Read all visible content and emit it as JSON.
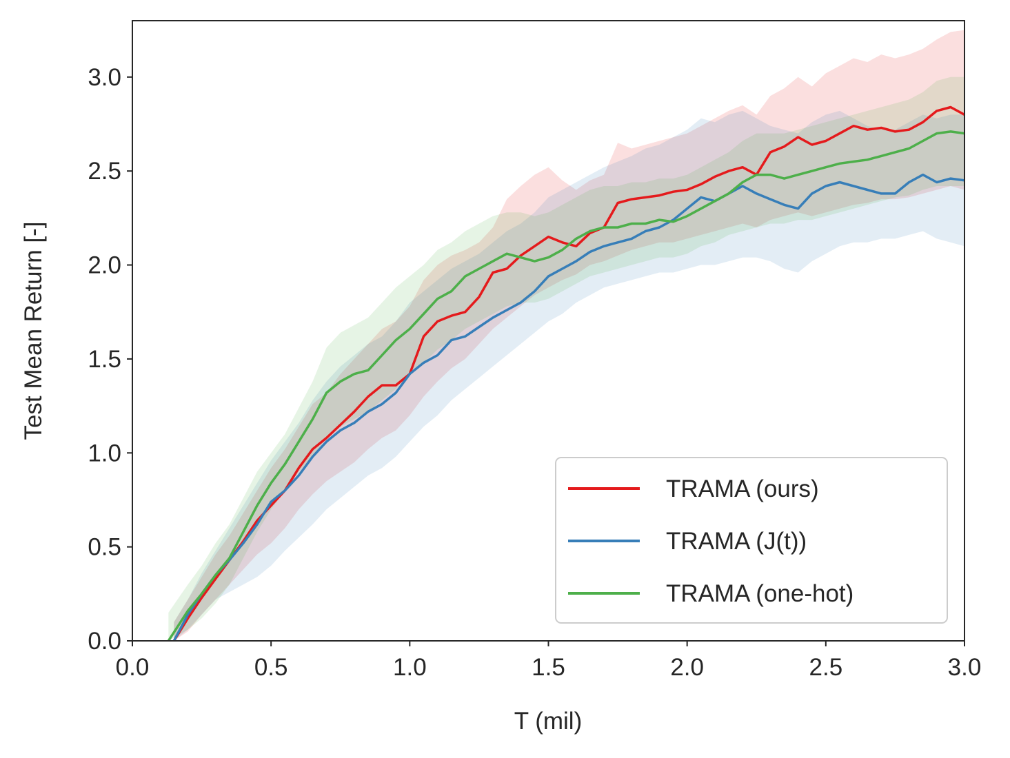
{
  "chart_data": {
    "type": "line",
    "title": "",
    "xlabel": "T (mil)",
    "ylabel": "Test Mean Return [-]",
    "xlim": [
      0.0,
      3.0
    ],
    "ylim": [
      0.0,
      3.3
    ],
    "xticks": [
      "0.0",
      "0.5",
      "1.0",
      "1.5",
      "2.0",
      "2.5",
      "3.0"
    ],
    "yticks": [
      "0.0",
      "0.5",
      "1.0",
      "1.5",
      "2.0",
      "2.5",
      "3.0"
    ],
    "grid": false,
    "legend_position": "bottom-right",
    "series": [
      {
        "name": "TRAMA (ours)",
        "color": "#e41a1c",
        "x": [
          0.15,
          0.2,
          0.25,
          0.3,
          0.35,
          0.4,
          0.45,
          0.5,
          0.55,
          0.6,
          0.65,
          0.7,
          0.75,
          0.8,
          0.85,
          0.9,
          0.95,
          1.0,
          1.05,
          1.1,
          1.15,
          1.2,
          1.25,
          1.3,
          1.35,
          1.4,
          1.45,
          1.5,
          1.55,
          1.6,
          1.65,
          1.7,
          1.75,
          1.8,
          1.85,
          1.9,
          1.95,
          2.0,
          2.05,
          2.1,
          2.15,
          2.2,
          2.25,
          2.3,
          2.35,
          2.4,
          2.45,
          2.5,
          2.55,
          2.6,
          2.65,
          2.7,
          2.75,
          2.8,
          2.85,
          2.9,
          2.95,
          3.0
        ],
        "y": [
          0.0,
          0.12,
          0.23,
          0.33,
          0.43,
          0.53,
          0.64,
          0.72,
          0.8,
          0.92,
          1.02,
          1.08,
          1.15,
          1.22,
          1.3,
          1.36,
          1.36,
          1.42,
          1.62,
          1.7,
          1.73,
          1.75,
          1.83,
          1.96,
          1.98,
          2.05,
          2.1,
          2.15,
          2.12,
          2.1,
          2.17,
          2.2,
          2.33,
          2.35,
          2.36,
          2.37,
          2.39,
          2.4,
          2.43,
          2.47,
          2.5,
          2.52,
          2.48,
          2.6,
          2.63,
          2.68,
          2.64,
          2.66,
          2.7,
          2.74,
          2.72,
          2.73,
          2.71,
          2.72,
          2.76,
          2.82,
          2.84,
          2.8
        ],
        "lower": [
          0.0,
          0.05,
          0.14,
          0.22,
          0.3,
          0.38,
          0.46,
          0.52,
          0.6,
          0.7,
          0.78,
          0.85,
          0.9,
          0.95,
          1.02,
          1.08,
          1.12,
          1.2,
          1.3,
          1.38,
          1.45,
          1.5,
          1.58,
          1.66,
          1.72,
          1.78,
          1.84,
          1.88,
          1.92,
          1.95,
          2.0,
          2.02,
          2.05,
          2.08,
          2.1,
          2.12,
          2.12,
          2.14,
          2.16,
          2.18,
          2.2,
          2.22,
          2.2,
          2.24,
          2.26,
          2.28,
          2.26,
          2.28,
          2.3,
          2.32,
          2.33,
          2.35,
          2.35,
          2.36,
          2.38,
          2.4,
          2.42,
          2.4
        ],
        "upper": [
          0.1,
          0.22,
          0.34,
          0.46,
          0.56,
          0.68,
          0.8,
          0.92,
          1.02,
          1.14,
          1.26,
          1.32,
          1.42,
          1.5,
          1.58,
          1.66,
          1.7,
          1.78,
          1.92,
          2.0,
          2.05,
          2.08,
          2.12,
          2.2,
          2.35,
          2.42,
          2.48,
          2.52,
          2.45,
          2.4,
          2.45,
          2.48,
          2.65,
          2.62,
          2.64,
          2.66,
          2.68,
          2.7,
          2.74,
          2.78,
          2.82,
          2.85,
          2.8,
          2.9,
          2.94,
          3.0,
          2.95,
          3.02,
          3.06,
          3.1,
          3.08,
          3.12,
          3.1,
          3.12,
          3.15,
          3.2,
          3.24,
          3.25
        ]
      },
      {
        "name": "TRAMA (J(t))",
        "color": "#377eb8",
        "x": [
          0.15,
          0.2,
          0.25,
          0.3,
          0.35,
          0.4,
          0.45,
          0.5,
          0.55,
          0.6,
          0.65,
          0.7,
          0.75,
          0.8,
          0.85,
          0.9,
          0.95,
          1.0,
          1.05,
          1.1,
          1.15,
          1.2,
          1.25,
          1.3,
          1.35,
          1.4,
          1.45,
          1.5,
          1.55,
          1.6,
          1.65,
          1.7,
          1.75,
          1.8,
          1.85,
          1.9,
          1.95,
          2.0,
          2.05,
          2.1,
          2.15,
          2.2,
          2.25,
          2.3,
          2.35,
          2.4,
          2.45,
          2.5,
          2.55,
          2.6,
          2.65,
          2.7,
          2.75,
          2.8,
          2.85,
          2.9,
          2.95,
          3.0
        ],
        "y": [
          0.0,
          0.14,
          0.25,
          0.35,
          0.43,
          0.52,
          0.62,
          0.74,
          0.8,
          0.88,
          0.98,
          1.06,
          1.12,
          1.16,
          1.22,
          1.26,
          1.32,
          1.42,
          1.48,
          1.52,
          1.6,
          1.62,
          1.67,
          1.72,
          1.76,
          1.8,
          1.86,
          1.94,
          1.98,
          2.02,
          2.07,
          2.1,
          2.12,
          2.14,
          2.18,
          2.2,
          2.24,
          2.3,
          2.36,
          2.34,
          2.38,
          2.42,
          2.38,
          2.35,
          2.32,
          2.3,
          2.38,
          2.42,
          2.44,
          2.42,
          2.4,
          2.38,
          2.38,
          2.44,
          2.48,
          2.44,
          2.46,
          2.45
        ],
        "lower": [
          0.0,
          0.06,
          0.14,
          0.22,
          0.26,
          0.3,
          0.34,
          0.4,
          0.48,
          0.55,
          0.62,
          0.7,
          0.76,
          0.82,
          0.88,
          0.92,
          0.98,
          1.06,
          1.14,
          1.2,
          1.28,
          1.34,
          1.4,
          1.46,
          1.52,
          1.58,
          1.64,
          1.7,
          1.74,
          1.8,
          1.84,
          1.88,
          1.9,
          1.92,
          1.94,
          1.96,
          1.96,
          1.98,
          2.0,
          2.0,
          2.02,
          2.04,
          2.04,
          2.02,
          1.98,
          1.96,
          2.02,
          2.06,
          2.1,
          2.12,
          2.12,
          2.14,
          2.14,
          2.16,
          2.18,
          2.14,
          2.12,
          2.1
        ],
        "upper": [
          0.1,
          0.22,
          0.36,
          0.48,
          0.6,
          0.72,
          0.84,
          0.96,
          1.06,
          1.16,
          1.28,
          1.38,
          1.46,
          1.52,
          1.58,
          1.62,
          1.7,
          1.8,
          1.86,
          1.92,
          1.98,
          2.02,
          2.06,
          2.12,
          2.18,
          2.22,
          2.28,
          2.36,
          2.4,
          2.44,
          2.48,
          2.52,
          2.55,
          2.58,
          2.62,
          2.64,
          2.68,
          2.72,
          2.78,
          2.76,
          2.8,
          2.82,
          2.78,
          2.74,
          2.72,
          2.7,
          2.76,
          2.8,
          2.82,
          2.78,
          2.74,
          2.72,
          2.72,
          2.76,
          2.8,
          2.78,
          2.8,
          2.8
        ]
      },
      {
        "name": "TRAMA (one-hot)",
        "color": "#4daf4a",
        "x": [
          0.13,
          0.2,
          0.25,
          0.3,
          0.35,
          0.4,
          0.45,
          0.5,
          0.55,
          0.6,
          0.65,
          0.7,
          0.75,
          0.8,
          0.85,
          0.9,
          0.95,
          1.0,
          1.05,
          1.1,
          1.15,
          1.2,
          1.25,
          1.3,
          1.35,
          1.4,
          1.45,
          1.5,
          1.55,
          1.6,
          1.65,
          1.7,
          1.75,
          1.8,
          1.85,
          1.9,
          1.95,
          2.0,
          2.05,
          2.1,
          2.15,
          2.2,
          2.25,
          2.3,
          2.35,
          2.4,
          2.45,
          2.5,
          2.55,
          2.6,
          2.65,
          2.7,
          2.75,
          2.8,
          2.85,
          2.9,
          2.95,
          3.0
        ],
        "y": [
          0.0,
          0.16,
          0.25,
          0.35,
          0.44,
          0.58,
          0.72,
          0.84,
          0.94,
          1.06,
          1.18,
          1.32,
          1.38,
          1.42,
          1.44,
          1.52,
          1.6,
          1.66,
          1.74,
          1.82,
          1.86,
          1.94,
          1.98,
          2.02,
          2.06,
          2.04,
          2.02,
          2.04,
          2.08,
          2.14,
          2.18,
          2.2,
          2.2,
          2.22,
          2.22,
          2.24,
          2.23,
          2.26,
          2.3,
          2.34,
          2.38,
          2.44,
          2.48,
          2.48,
          2.46,
          2.48,
          2.5,
          2.52,
          2.54,
          2.55,
          2.56,
          2.58,
          2.6,
          2.62,
          2.66,
          2.7,
          2.71,
          2.7
        ],
        "lower": [
          0.0,
          0.06,
          0.12,
          0.2,
          0.3,
          0.44,
          0.58,
          0.7,
          0.8,
          0.9,
          0.98,
          1.08,
          1.14,
          1.18,
          1.22,
          1.28,
          1.34,
          1.42,
          1.48,
          1.55,
          1.6,
          1.66,
          1.7,
          1.74,
          1.78,
          1.8,
          1.8,
          1.82,
          1.86,
          1.9,
          1.94,
          1.96,
          1.98,
          2.0,
          2.02,
          2.04,
          2.04,
          2.06,
          2.1,
          2.12,
          2.16,
          2.18,
          2.2,
          2.22,
          2.22,
          2.24,
          2.24,
          2.26,
          2.28,
          2.3,
          2.32,
          2.34,
          2.36,
          2.37,
          2.4,
          2.42,
          2.42,
          2.42
        ],
        "upper": [
          0.15,
          0.3,
          0.4,
          0.52,
          0.62,
          0.76,
          0.9,
          1.0,
          1.1,
          1.24,
          1.38,
          1.56,
          1.64,
          1.68,
          1.72,
          1.8,
          1.88,
          1.94,
          2.0,
          2.08,
          2.12,
          2.18,
          2.22,
          2.26,
          2.28,
          2.28,
          2.26,
          2.28,
          2.32,
          2.36,
          2.4,
          2.42,
          2.42,
          2.44,
          2.44,
          2.46,
          2.46,
          2.48,
          2.52,
          2.56,
          2.6,
          2.66,
          2.7,
          2.7,
          2.7,
          2.72,
          2.74,
          2.76,
          2.78,
          2.8,
          2.82,
          2.84,
          2.86,
          2.88,
          2.92,
          2.98,
          3.0,
          3.0
        ]
      }
    ]
  }
}
